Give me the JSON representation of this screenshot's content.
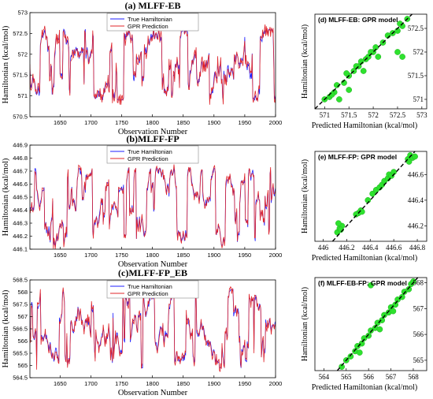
{
  "colors": {
    "true_line": "#1f1fff",
    "pred_line": "#e0242a",
    "scatter_fill": "#2ee22e",
    "scatter_edge": "#22b022",
    "dash": "#000000",
    "axis": "#000000",
    "grid_bg": "#ffffff"
  },
  "chart_data": [
    {
      "id": "ts_eb",
      "type": "line",
      "title": "(a) MLFF-EB",
      "xlabel": "Observation Number",
      "ylabel": "Hamiltonian (kcal/mol)",
      "xlim": [
        1601,
        2000
      ],
      "ylim": [
        570.5,
        573
      ],
      "xticks": [
        1650,
        1700,
        1750,
        1800,
        1850,
        1900,
        1950,
        2000
      ],
      "yticks": [
        570.5,
        571,
        571.5,
        572,
        572.5,
        573
      ],
      "ytick_labels": [
        "570.5",
        "571",
        "571.5",
        "572",
        "572.5",
        "573"
      ],
      "legend": [
        "True Hamiltonian",
        "GPR Prediction"
      ],
      "legend_position": "top-center",
      "series": [
        {
          "name": "True Hamiltonian",
          "generator": {
            "seed": 11,
            "lo": 570.9,
            "hi": 572.6,
            "n": 400
          }
        },
        {
          "name": "GPR Prediction",
          "generator": {
            "seed": 12,
            "jitter": 0.12
          }
        }
      ]
    },
    {
      "id": "ts_fp",
      "type": "line",
      "title": "(b)MLFF-FP",
      "xlabel": "Observation Number",
      "ylabel": "Hamiltonian (kcal/mol)",
      "xlim": [
        1601,
        2000
      ],
      "ylim": [
        446.1,
        446.9
      ],
      "xticks": [
        1650,
        1700,
        1750,
        1800,
        1850,
        1900,
        1950,
        2000
      ],
      "yticks": [
        446.1,
        446.2,
        446.3,
        446.4,
        446.5,
        446.6,
        446.7,
        446.8,
        446.9
      ],
      "ytick_labels": [
        "446.1",
        "446.2",
        "446.3",
        "446.4",
        "446.5",
        "446.6",
        "446.7",
        "446.8",
        "446.9"
      ],
      "legend": [
        "True Hamiltonian",
        "GPR Prediction"
      ],
      "legend_position": "top-center",
      "series": [
        {
          "name": "True Hamiltonian",
          "generator": {
            "seed": 21,
            "lo": 446.13,
            "hi": 446.72,
            "n": 400
          }
        },
        {
          "name": "GPR Prediction",
          "generator": {
            "seed": 22,
            "jitter": 0.08
          }
        }
      ]
    },
    {
      "id": "ts_fp_eb",
      "type": "line",
      "title": "(c)MLFF-FP_EB",
      "xlabel": "Observation Number",
      "ylabel": "Hamiltonian (kcal/mol)",
      "xlim": [
        1601,
        2000
      ],
      "ylim": [
        564.5,
        568.5
      ],
      "xticks": [
        1650,
        1700,
        1750,
        1800,
        1850,
        1900,
        1950,
        2000
      ],
      "yticks": [
        564.5,
        565,
        565.5,
        566,
        566.5,
        567,
        567.5,
        568,
        568.5
      ],
      "ytick_labels": [
        "564.5",
        "565",
        "565.5",
        "566",
        "566.5",
        "567",
        "567.5",
        "568",
        "568.5"
      ],
      "legend": [
        "True Hamiltonian",
        "GPR Prediction"
      ],
      "legend_position": "top-center",
      "series": [
        {
          "name": "True Hamiltonian",
          "generator": {
            "seed": 31,
            "lo": 564.9,
            "hi": 568.1,
            "n": 400
          }
        },
        {
          "name": "GPR Prediction",
          "generator": {
            "seed": 32,
            "jitter": 0.1
          }
        }
      ]
    },
    {
      "id": "sc_eb",
      "type": "scatter",
      "title": "(d) MLFF-EB: GPR model",
      "xlabel": "Predicted Hamiltonian (kcal/mol)",
      "ylabel": "Hamiltonian (kcal/mol)",
      "xlim": [
        570.8,
        573.1
      ],
      "ylim": [
        570.8,
        572.8
      ],
      "xticks": [
        571,
        571.5,
        572,
        572.5,
        573
      ],
      "xtick_labels": [
        "571",
        "571.5",
        "572",
        "572.5",
        "573"
      ],
      "yticks": [
        571,
        571.5,
        572,
        572.5
      ],
      "ytick_labels": [
        "571",
        "571.5",
        "572",
        "572.5"
      ],
      "points": [
        [
          571.0,
          571.0
        ],
        [
          571.1,
          571.05
        ],
        [
          571.2,
          571.15
        ],
        [
          571.25,
          571.3
        ],
        [
          571.4,
          571.35
        ],
        [
          571.5,
          571.5
        ],
        [
          571.6,
          571.6
        ],
        [
          571.7,
          571.7
        ],
        [
          571.75,
          571.8
        ],
        [
          571.85,
          571.85
        ],
        [
          571.9,
          571.9
        ],
        [
          572.0,
          572.0
        ],
        [
          572.05,
          572.1
        ],
        [
          572.1,
          571.9
        ],
        [
          572.2,
          572.2
        ],
        [
          572.4,
          572.4
        ],
        [
          572.5,
          572.45
        ],
        [
          572.6,
          572.55
        ],
        [
          572.7,
          572.7
        ],
        [
          572.5,
          572.0
        ],
        [
          572.6,
          571.9
        ],
        [
          571.5,
          571.2
        ],
        [
          571.3,
          571.0
        ],
        [
          571.8,
          571.6
        ],
        [
          572.3,
          572.35
        ],
        [
          571.45,
          571.55
        ],
        [
          571.65,
          571.7
        ],
        [
          571.95,
          572.0
        ],
        [
          572.55,
          572.6
        ],
        [
          571.15,
          571.1
        ]
      ],
      "reference_line": "y = x (dashed)"
    },
    {
      "id": "sc_fp",
      "type": "scatter",
      "title": "(e) MLFF-FP: GPR model",
      "xlabel": "Predicted Hamiltonian (kcal/mol)",
      "ylabel": "Hamiltonian (kcal/mol)",
      "xlim": [
        445.93,
        446.88
      ],
      "ylim": [
        446.08,
        446.78
      ],
      "xticks": [
        446,
        446.2,
        446.4,
        446.6,
        446.8
      ],
      "xtick_labels": [
        "446",
        "446.2",
        "446.4",
        "446.6",
        "446.8"
      ],
      "yticks": [
        446.2,
        446.4,
        446.6
      ],
      "ytick_labels": [
        "446.2",
        "446.4",
        "446.6"
      ],
      "points": [
        [
          446.12,
          446.15
        ],
        [
          446.14,
          446.18
        ],
        [
          446.16,
          446.2
        ],
        [
          446.13,
          446.22
        ],
        [
          446.15,
          446.17
        ],
        [
          446.3,
          446.3
        ],
        [
          446.32,
          446.32
        ],
        [
          446.28,
          446.29
        ],
        [
          446.33,
          446.31
        ],
        [
          446.38,
          446.4
        ],
        [
          446.42,
          446.45
        ],
        [
          446.45,
          446.48
        ],
        [
          446.48,
          446.5
        ],
        [
          446.5,
          446.52
        ],
        [
          446.52,
          446.55
        ],
        [
          446.55,
          446.57
        ],
        [
          446.56,
          446.6
        ],
        [
          446.58,
          446.59
        ],
        [
          446.6,
          446.62
        ],
        [
          446.72,
          446.72
        ],
        [
          446.74,
          446.75
        ],
        [
          446.76,
          446.73
        ],
        [
          446.73,
          446.7
        ],
        [
          446.78,
          446.74
        ]
      ],
      "reference_line": "y = x (dashed)"
    },
    {
      "id": "sc_fp_eb",
      "type": "scatter",
      "title": "(f) MLFF-EB-FP: GPR model",
      "xlabel": "Predicted Hamiltonian (kcal/mol)",
      "ylabel": "Hamiltonian (kcal/mol)",
      "xlim": [
        563.6,
        568.6
      ],
      "ylim": [
        564.6,
        568.2
      ],
      "xticks": [
        564,
        565,
        566,
        567,
        568
      ],
      "xtick_labels": [
        "564",
        "565",
        "566",
        "567",
        "568"
      ],
      "yticks": [
        565,
        566,
        567,
        568
      ],
      "ytick_labels": [
        "565",
        "566",
        "567",
        "568"
      ],
      "points": [
        [
          564.8,
          564.75
        ],
        [
          565.0,
          565.0
        ],
        [
          565.2,
          565.15
        ],
        [
          565.4,
          565.35
        ],
        [
          565.5,
          565.55
        ],
        [
          565.7,
          565.65
        ],
        [
          565.8,
          565.85
        ],
        [
          566.0,
          565.95
        ],
        [
          566.1,
          566.15
        ],
        [
          566.3,
          566.25
        ],
        [
          566.4,
          566.45
        ],
        [
          566.6,
          566.55
        ],
        [
          566.7,
          566.75
        ],
        [
          566.9,
          566.85
        ],
        [
          567.0,
          567.05
        ],
        [
          567.2,
          567.15
        ],
        [
          567.3,
          567.35
        ],
        [
          567.5,
          567.45
        ],
        [
          567.6,
          567.65
        ],
        [
          567.8,
          567.75
        ],
        [
          567.9,
          567.95
        ],
        [
          568.0,
          568.05
        ],
        [
          566.1,
          567.9
        ],
        [
          565.6,
          565.3
        ],
        [
          566.5,
          566.2
        ],
        [
          567.1,
          566.9
        ]
      ],
      "reference_line": "y = x (dashed)"
    }
  ]
}
